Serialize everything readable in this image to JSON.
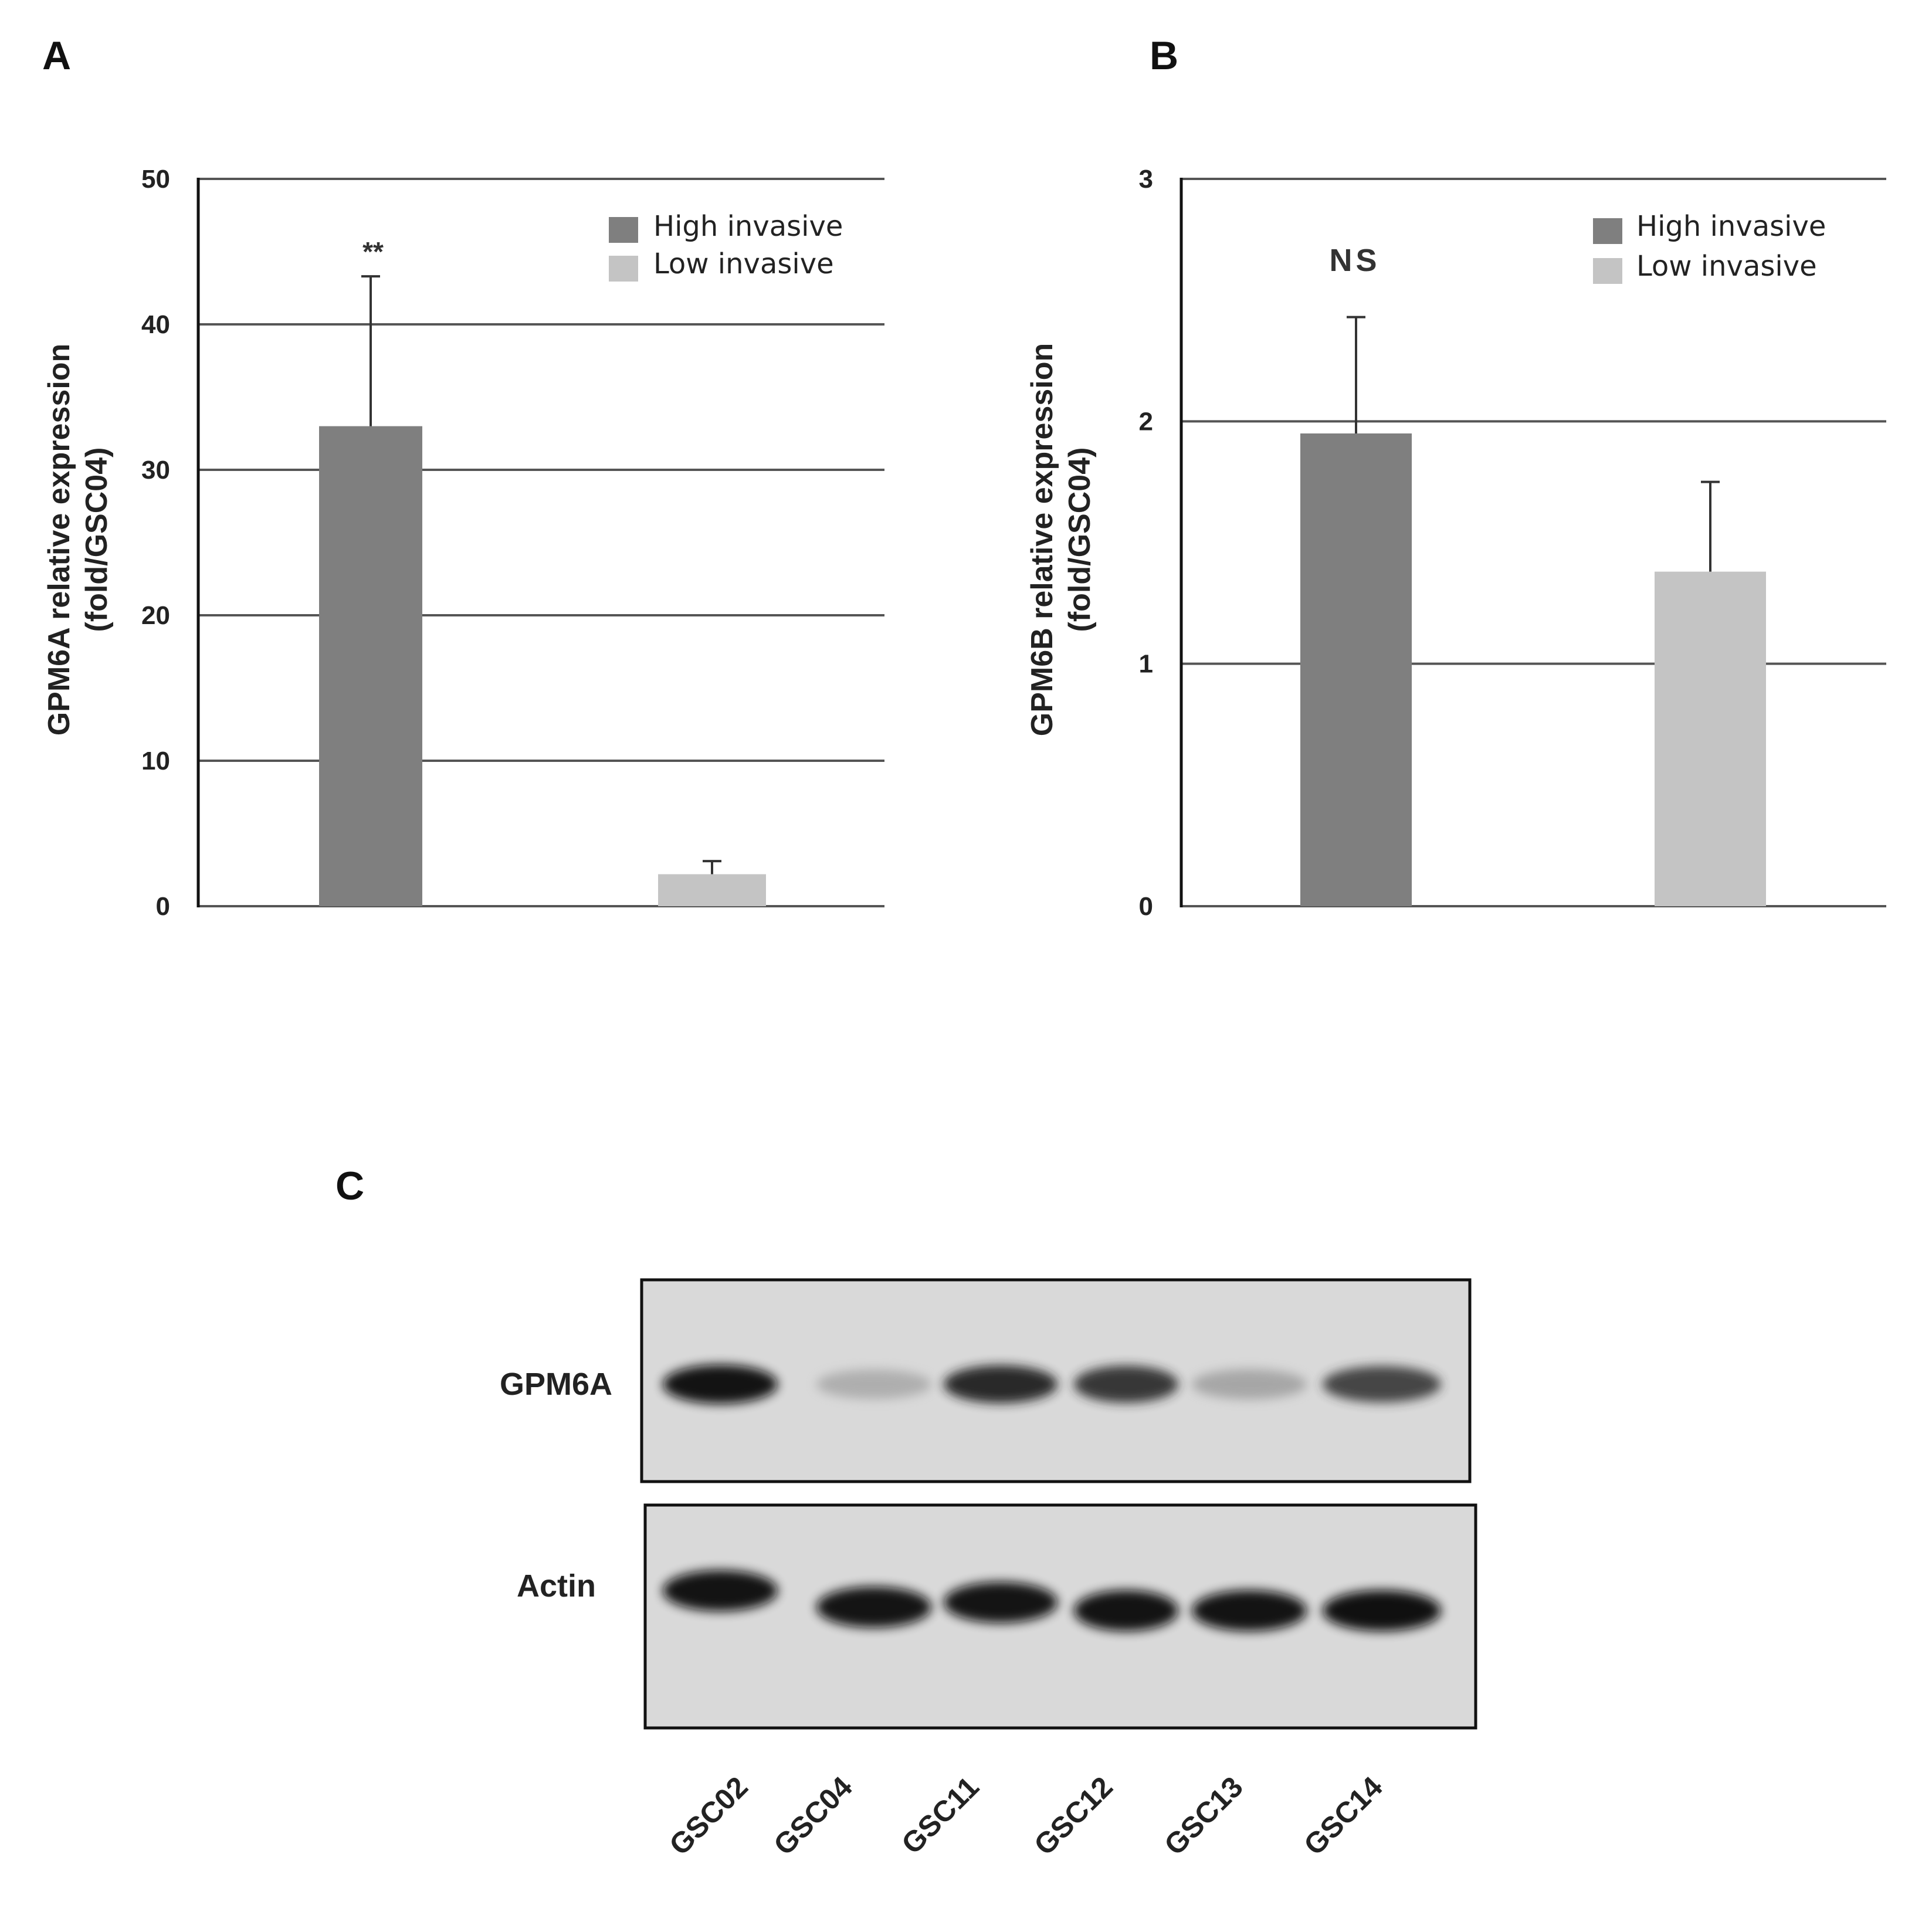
{
  "panels": {
    "a": "A",
    "b": "B",
    "c": "C"
  },
  "colors": {
    "high": "#7f7f7f",
    "low": "#c4c4c4",
    "grid": "#555555"
  },
  "chart_data": [
    {
      "type": "bar",
      "ylabel_line1": "GPM6A relative expression",
      "ylabel_line2": "(fold/GSC04)",
      "ylim": [
        0,
        50
      ],
      "yticks": [
        0,
        10,
        20,
        30,
        40,
        50
      ],
      "grid": true,
      "legend_position": "top-right",
      "series": [
        {
          "name": "High invasive",
          "value": 33,
          "error": 10.3,
          "color": "#7f7f7f"
        },
        {
          "name": "Low invasive",
          "value": 2.2,
          "error": 0.9,
          "color": "#c4c4c4"
        }
      ],
      "annotation": "**"
    },
    {
      "type": "bar",
      "ylabel_line1": "GPM6B relative expression",
      "ylabel_line2": "(fold/GSC04)",
      "ylim": [
        0,
        3
      ],
      "yticks": [
        0,
        1,
        2,
        3
      ],
      "grid": true,
      "legend_position": "top-right",
      "series": [
        {
          "name": "High invasive",
          "value": 1.95,
          "error": 0.48,
          "color": "#7f7f7f"
        },
        {
          "name": "Low invasive",
          "value": 1.38,
          "error": 0.37,
          "color": "#c4c4c4"
        }
      ],
      "annotation": "NS"
    }
  ],
  "blot": {
    "rows": [
      {
        "label": "GPM6A",
        "intensities": [
          0.95,
          0.25,
          0.85,
          0.8,
          0.3,
          0.75
        ]
      },
      {
        "label": "Actin",
        "intensities": [
          0.95,
          0.92,
          0.92,
          0.93,
          0.95,
          0.96
        ]
      }
    ],
    "lanes": [
      "GSC02",
      "GSC04",
      "GSC11",
      "GSC12",
      "GSC13",
      "GSC14"
    ]
  }
}
